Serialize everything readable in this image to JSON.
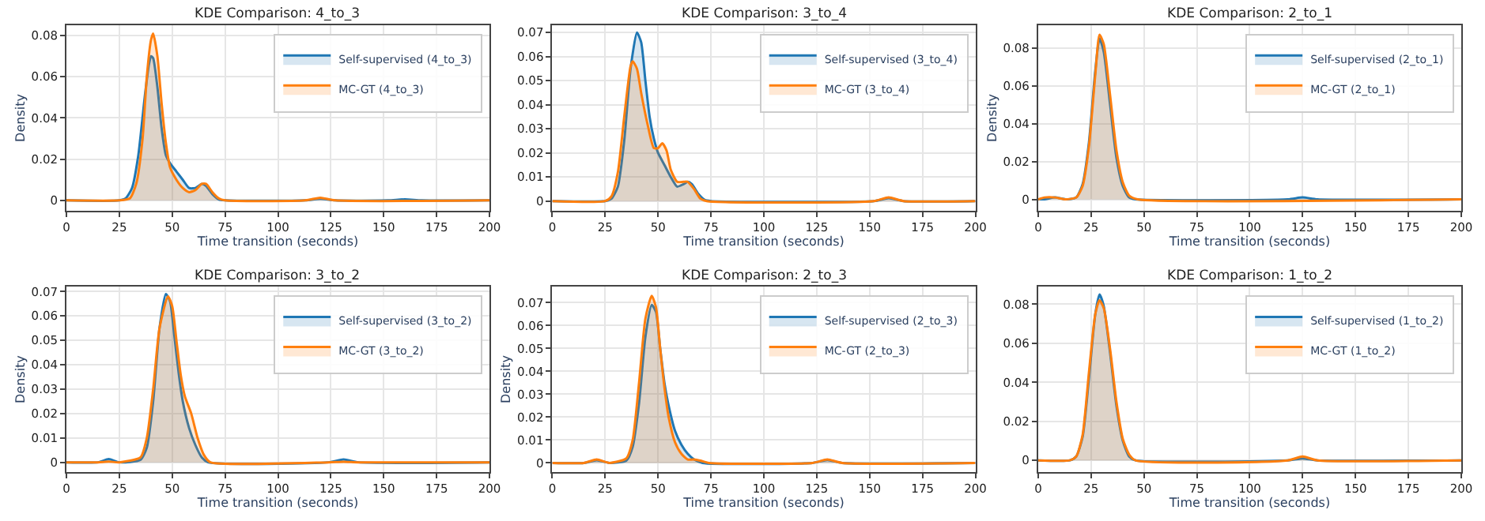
{
  "chart_data": [
    {
      "type": "area",
      "title": "KDE Comparison: 4_to_3",
      "xlabel": "Time transition (seconds)",
      "ylabel": "Density",
      "xlim": [
        0,
        200
      ],
      "xticks": [
        0,
        25,
        50,
        75,
        100,
        125,
        150,
        175,
        200
      ],
      "ylim": [
        -0.005,
        0.085
      ],
      "yticks": [
        0,
        0.02,
        0.04,
        0.06,
        0.08
      ],
      "grid": true,
      "legend": "top right",
      "series": [
        {
          "name": "Self-supervised (4_to_3)",
          "color": "#1f77b4",
          "x": [
            0,
            25,
            28,
            31,
            34,
            37,
            39,
            40,
            41,
            43,
            45,
            47,
            49,
            52,
            55,
            58,
            61,
            64,
            66,
            69,
            72,
            75,
            113,
            120,
            127,
            152,
            160,
            168,
            200
          ],
          "values": [
            0,
            0,
            0.001,
            0.006,
            0.022,
            0.05,
            0.066,
            0.07,
            0.069,
            0.055,
            0.035,
            0.022,
            0.018,
            0.014,
            0.01,
            0.006,
            0.006,
            0.008,
            0.007,
            0.003,
            0.0005,
            0,
            0,
            0.0008,
            0,
            0,
            0.0005,
            0,
            0
          ]
        },
        {
          "name": "MC-GT (4_to_3)",
          "color": "#ff7f0e",
          "x": [
            0,
            25,
            30,
            33,
            36,
            38,
            40,
            41,
            43,
            45,
            47,
            49,
            52,
            55,
            58,
            61,
            64,
            66,
            69,
            72,
            75,
            113,
            120,
            127,
            200
          ],
          "values": [
            0,
            0,
            0.001,
            0.008,
            0.03,
            0.06,
            0.078,
            0.081,
            0.07,
            0.047,
            0.028,
            0.016,
            0.01,
            0.006,
            0.004,
            0.005,
            0.008,
            0.008,
            0.004,
            0.001,
            0,
            0,
            0.0013,
            0,
            0
          ]
        }
      ]
    },
    {
      "type": "area",
      "title": "KDE Comparison: 3_to_4",
      "xlabel": "Time transition (seconds)",
      "xlim": [
        0,
        200
      ],
      "xticks": [
        0,
        25,
        50,
        75,
        100,
        125,
        150,
        175,
        200
      ],
      "ylim": [
        -0.004,
        0.073
      ],
      "yticks": [
        0,
        0.01,
        0.02,
        0.03,
        0.04,
        0.05,
        0.06,
        0.07
      ],
      "grid": true,
      "legend": "top right",
      "series": [
        {
          "name": "Self-supervised (3_to_4)",
          "color": "#1f77b4",
          "x": [
            0,
            25,
            28,
            31,
            34,
            37,
            40,
            42,
            44,
            46,
            48,
            50,
            53,
            56,
            59,
            62,
            64,
            66,
            69,
            72,
            75,
            152,
            159,
            166,
            200
          ],
          "values": [
            0,
            0,
            0.001,
            0.006,
            0.025,
            0.055,
            0.07,
            0.066,
            0.05,
            0.035,
            0.026,
            0.02,
            0.015,
            0.01,
            0.006,
            0.007,
            0.008,
            0.007,
            0.003,
            0.0005,
            0,
            0,
            0.0012,
            0,
            0
          ]
        },
        {
          "name": "MC-GT (3_to_4)",
          "color": "#ff7f0e",
          "x": [
            0,
            25,
            28,
            31,
            34,
            37,
            38,
            40,
            42,
            45,
            48,
            50,
            52,
            54,
            56,
            59,
            62,
            64,
            67,
            70,
            73,
            152,
            159,
            166,
            200
          ],
          "values": [
            0,
            0,
            0.002,
            0.012,
            0.035,
            0.056,
            0.058,
            0.055,
            0.045,
            0.032,
            0.022,
            0.022,
            0.024,
            0.021,
            0.013,
            0.008,
            0.008,
            0.008,
            0.005,
            0.001,
            0,
            0,
            0.0015,
            0,
            0
          ]
        }
      ]
    },
    {
      "type": "area",
      "title": "KDE Comparison: 2_to_1",
      "xlabel": "Time transition (seconds)",
      "ylabel": "Density",
      "xlim": [
        0,
        200
      ],
      "xticks": [
        0,
        25,
        50,
        75,
        100,
        125,
        150,
        175,
        200
      ],
      "ylim": [
        -0.006,
        0.092
      ],
      "yticks": [
        0,
        0.02,
        0.04,
        0.06,
        0.08
      ],
      "grid": true,
      "legend": "top right",
      "series": [
        {
          "name": "Self-supervised (2_to_1)",
          "color": "#1f77b4",
          "x": [
            0,
            3,
            8,
            13,
            18,
            21,
            24,
            27,
            29,
            31,
            34,
            37,
            40,
            43,
            46,
            118,
            125,
            132,
            200
          ],
          "values": [
            0,
            0,
            0.001,
            0,
            0.001,
            0.008,
            0.03,
            0.068,
            0.085,
            0.078,
            0.05,
            0.022,
            0.007,
            0.001,
            0,
            0,
            0.001,
            0,
            0
          ]
        },
        {
          "name": "MC-GT (2_to_1)",
          "color": "#ff7f0e",
          "x": [
            0,
            3,
            8,
            13,
            18,
            21,
            24,
            27,
            29,
            31,
            34,
            37,
            40,
            43,
            47,
            200
          ],
          "values": [
            0,
            0.001,
            0.001,
            0,
            0.001,
            0.007,
            0.028,
            0.066,
            0.087,
            0.082,
            0.055,
            0.026,
            0.009,
            0.002,
            0,
            0
          ]
        }
      ]
    },
    {
      "type": "area",
      "title": "KDE Comparison: 3_to_2",
      "xlabel": "Time transition (seconds)",
      "ylabel": "Density",
      "xlim": [
        0,
        200
      ],
      "xticks": [
        0,
        25,
        50,
        75,
        100,
        125,
        150,
        175,
        200
      ],
      "ylim": [
        -0.004,
        0.072
      ],
      "yticks": [
        0,
        0.01,
        0.02,
        0.03,
        0.04,
        0.05,
        0.06,
        0.07
      ],
      "grid": true,
      "legend": "top right",
      "series": [
        {
          "name": "Self-supervised (3_to_2)",
          "color": "#1f77b4",
          "x": [
            0,
            15,
            20,
            25,
            35,
            38,
            41,
            44,
            47,
            49,
            51,
            53,
            55,
            58,
            61,
            64,
            67,
            124,
            131,
            138,
            200
          ],
          "values": [
            0,
            0,
            0.0013,
            0,
            0.001,
            0.006,
            0.025,
            0.055,
            0.069,
            0.066,
            0.052,
            0.037,
            0.025,
            0.014,
            0.007,
            0.002,
            0,
            0,
            0.0012,
            0,
            0
          ]
        },
        {
          "name": "MC-GT (3_to_2)",
          "color": "#ff7f0e",
          "x": [
            0,
            15,
            20,
            25,
            35,
            38,
            41,
            44,
            48,
            50,
            52,
            54,
            56,
            59,
            62,
            65,
            68,
            124,
            131,
            138,
            200
          ],
          "values": [
            0,
            0,
            0.0003,
            0,
            0.002,
            0.01,
            0.03,
            0.055,
            0.068,
            0.064,
            0.05,
            0.036,
            0.027,
            0.02,
            0.01,
            0.003,
            0,
            0,
            0.0002,
            0,
            0
          ]
        }
      ]
    },
    {
      "type": "area",
      "title": "KDE Comparison: 2_to_3",
      "xlabel": "Time transition (seconds)",
      "ylabel": "Density",
      "xlim": [
        0,
        200
      ],
      "xticks": [
        0,
        25,
        50,
        75,
        100,
        125,
        150,
        175,
        200
      ],
      "ylim": [
        -0.004,
        0.077
      ],
      "yticks": [
        0,
        0.01,
        0.02,
        0.03,
        0.04,
        0.05,
        0.06,
        0.07
      ],
      "grid": true,
      "legend": "top right",
      "series": [
        {
          "name": "Self-supervised (2_to_3)",
          "color": "#1f77b4",
          "x": [
            0,
            15,
            21,
            27,
            35,
            38,
            41,
            44,
            47,
            49,
            51,
            53,
            55,
            58,
            61,
            64,
            67,
            71,
            123,
            130,
            137,
            200
          ],
          "values": [
            0,
            0,
            0.0012,
            0,
            0.001,
            0.007,
            0.026,
            0.055,
            0.069,
            0.066,
            0.05,
            0.035,
            0.025,
            0.014,
            0.008,
            0.004,
            0.0015,
            0,
            0,
            0.0013,
            0,
            0
          ]
        },
        {
          "name": "MC-GT (2_to_3)",
          "color": "#ff7f0e",
          "x": [
            0,
            15,
            21,
            27,
            35,
            38,
            41,
            44,
            47,
            49,
            51,
            53,
            55,
            58,
            61,
            64,
            67,
            70,
            74,
            123,
            130,
            137,
            200
          ],
          "values": [
            0,
            0,
            0.0015,
            0,
            0.002,
            0.01,
            0.035,
            0.063,
            0.073,
            0.068,
            0.05,
            0.033,
            0.02,
            0.009,
            0.004,
            0.0015,
            0.0015,
            0.001,
            0,
            0,
            0.0015,
            0,
            0
          ]
        }
      ]
    },
    {
      "type": "area",
      "title": "KDE Comparison: 1_to_2",
      "xlabel": "Time transition (seconds)",
      "xlim": [
        0,
        200
      ],
      "xticks": [
        0,
        25,
        50,
        75,
        100,
        125,
        150,
        175,
        200
      ],
      "ylim": [
        -0.006,
        0.089
      ],
      "yticks": [
        0,
        0.02,
        0.04,
        0.06,
        0.08
      ],
      "grid": true,
      "legend": "top right",
      "series": [
        {
          "name": "Self-supervised (1_to_2)",
          "color": "#1f77b4",
          "x": [
            0,
            15,
            18,
            21,
            24,
            27,
            29,
            31,
            34,
            37,
            40,
            43,
            46,
            118,
            125,
            132,
            200
          ],
          "values": [
            0,
            0,
            0.002,
            0.012,
            0.042,
            0.075,
            0.085,
            0.079,
            0.055,
            0.028,
            0.01,
            0.002,
            0,
            0,
            0.001,
            0,
            0
          ]
        },
        {
          "name": "MC-GT (1_to_2)",
          "color": "#ff7f0e",
          "x": [
            0,
            15,
            18,
            21,
            24,
            27,
            29,
            31,
            34,
            37,
            40,
            43,
            46,
            118,
            125,
            132,
            200
          ],
          "values": [
            0,
            0,
            0.002,
            0.013,
            0.045,
            0.075,
            0.082,
            0.078,
            0.057,
            0.03,
            0.011,
            0.003,
            0,
            0,
            0.002,
            0,
            0
          ]
        }
      ]
    }
  ]
}
